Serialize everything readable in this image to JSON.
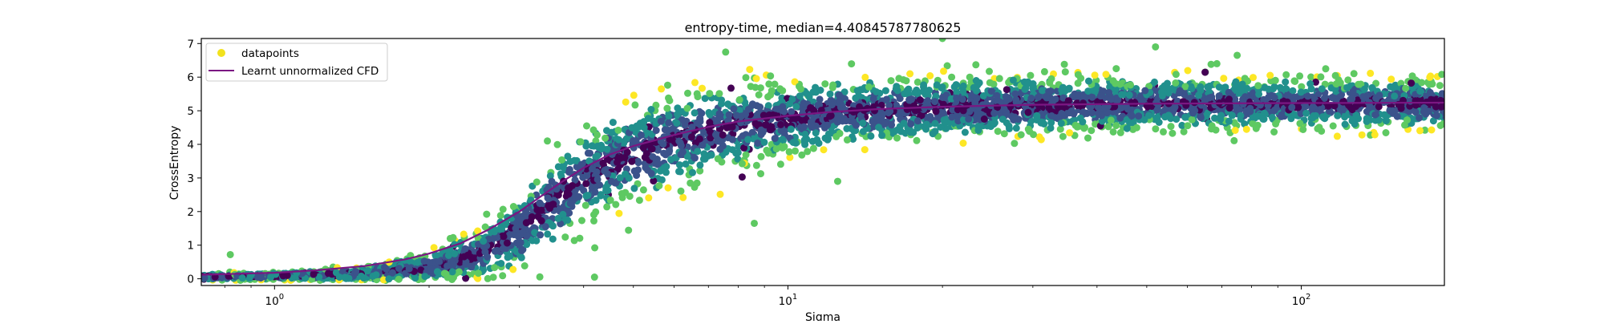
{
  "chart_data": {
    "type": "scatter",
    "title": "entropy-time, median=4.40845787780625",
    "xlabel": "Sigma",
    "ylabel": "CrossEntropy",
    "xscale": "log",
    "xlim": [
      0.72,
      190
    ],
    "ylim": [
      -0.2,
      7.15
    ],
    "x_ticks": [
      {
        "value": 1,
        "base": "10",
        "exp": "0"
      },
      {
        "value": 10,
        "base": "10",
        "exp": "1"
      },
      {
        "value": 100,
        "base": "10",
        "exp": "2"
      }
    ],
    "y_ticks": [
      0,
      1,
      2,
      3,
      4,
      5,
      6,
      7
    ],
    "grid": false,
    "legend": {
      "placement": "upper left",
      "entries": [
        {
          "label": "datapoints",
          "kind": "marker",
          "color": "#f2e21d"
        },
        {
          "label": "Learnt unnormalized CFD",
          "kind": "line",
          "color": "#7b1782"
        }
      ]
    },
    "colormap": [
      "#440154",
      "#3b528b",
      "#21908d",
      "#5ec962",
      "#fde725"
    ],
    "series": [
      {
        "name": "datapoints",
        "type": "scatter",
        "approx_points": 20000,
        "envelope": {
          "sigma": [
            0.72,
            1.0,
            1.5,
            2.0,
            2.5,
            3.0,
            3.5,
            4.0,
            4.5,
            5.0,
            6.0,
            7.0,
            8.0,
            10.0,
            13.0,
            20.0,
            30.0,
            50.0,
            100.0,
            190.0
          ],
          "median": [
            0.05,
            0.08,
            0.15,
            0.35,
            0.75,
            1.4,
            2.3,
            3.0,
            3.4,
            3.7,
            4.1,
            4.35,
            4.55,
            4.75,
            4.95,
            5.1,
            5.15,
            5.2,
            5.22,
            5.22
          ],
          "spread": [
            0.05,
            0.06,
            0.12,
            0.25,
            0.45,
            0.65,
            0.8,
            0.85,
            0.85,
            0.85,
            0.8,
            0.75,
            0.72,
            0.65,
            0.6,
            0.55,
            0.5,
            0.45,
            0.45,
            0.45
          ]
        },
        "outliers": [
          {
            "x": 0.82,
            "y": 0.72
          },
          {
            "x": 4.2,
            "y": 0.05
          },
          {
            "x": 8.6,
            "y": 1.65
          },
          {
            "x": 3.4,
            "y": 4.1
          },
          {
            "x": 12.5,
            "y": 2.9
          },
          {
            "x": 20.0,
            "y": 7.15
          },
          {
            "x": 52.0,
            "y": 6.9
          },
          {
            "x": 75.0,
            "y": 6.65
          }
        ]
      },
      {
        "name": "Learnt unnormalized CFD",
        "type": "line",
        "color": "#7b1782",
        "x": [
          0.72,
          0.8,
          0.9,
          1.0,
          1.2,
          1.5,
          1.8,
          2.0,
          2.3,
          2.6,
          3.0,
          3.3,
          3.6,
          4.0,
          4.5,
          5.0,
          5.5,
          6.0,
          7.0,
          8.0,
          10.0,
          12.0,
          15.0,
          20.0,
          30.0,
          50.0,
          100.0,
          190.0
        ],
        "y": [
          0.12,
          0.14,
          0.16,
          0.18,
          0.25,
          0.38,
          0.58,
          0.75,
          1.05,
          1.45,
          2.0,
          2.45,
          2.85,
          3.3,
          3.7,
          3.95,
          4.12,
          4.28,
          4.52,
          4.68,
          4.85,
          4.96,
          5.05,
          5.12,
          5.18,
          5.21,
          5.23,
          5.24
        ]
      }
    ]
  }
}
